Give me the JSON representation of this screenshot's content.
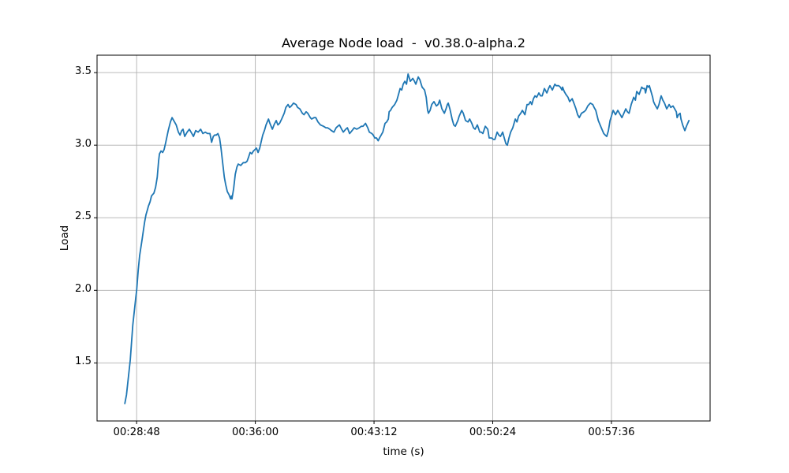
{
  "chart_data": {
    "type": "line",
    "title": "Average Node load  -  v0.38.0-alpha.2",
    "xlabel": "time (s)",
    "ylabel": "Load",
    "line_color": "#1f77b4",
    "grid": true,
    "grid_color": "#b0b0b0",
    "spine_color": "#000000",
    "background_color": "#ffffff",
    "legend": "none",
    "xlim_seconds": [
      1584,
      3815
    ],
    "ylim": [
      1.1,
      3.62
    ],
    "xticks": [
      {
        "label": "00:28:48",
        "seconds": 1728
      },
      {
        "label": "00:36:00",
        "seconds": 2160
      },
      {
        "label": "00:43:12",
        "seconds": 2592
      },
      {
        "label": "00:50:24",
        "seconds": 3024
      },
      {
        "label": "00:57:36",
        "seconds": 3456
      }
    ],
    "yticks": [
      {
        "label": "3.5",
        "value": 3.5
      },
      {
        "label": "3.0",
        "value": 3.0
      },
      {
        "label": "2.5",
        "value": 2.5
      },
      {
        "label": "2.0",
        "value": 2.0
      },
      {
        "label": "1.5",
        "value": 1.5
      }
    ],
    "series": [
      {
        "name": "average-node-load",
        "points": [
          [
            1685,
            1.22
          ],
          [
            1691,
            1.28
          ],
          [
            1705,
            1.52
          ],
          [
            1714,
            1.76
          ],
          [
            1725,
            1.95
          ],
          [
            1728,
            2.0
          ],
          [
            1734,
            2.14
          ],
          [
            1739,
            2.24
          ],
          [
            1748,
            2.35
          ],
          [
            1754,
            2.43
          ],
          [
            1757,
            2.47
          ],
          [
            1762,
            2.52
          ],
          [
            1768,
            2.56
          ],
          [
            1771,
            2.58
          ],
          [
            1777,
            2.61
          ],
          [
            1782,
            2.65
          ],
          [
            1791,
            2.67
          ],
          [
            1797,
            2.71
          ],
          [
            1803,
            2.78
          ],
          [
            1808,
            2.89
          ],
          [
            1811,
            2.94
          ],
          [
            1817,
            2.96
          ],
          [
            1823,
            2.95
          ],
          [
            1828,
            2.97
          ],
          [
            1834,
            3.02
          ],
          [
            1843,
            3.1
          ],
          [
            1851,
            3.16
          ],
          [
            1857,
            3.19
          ],
          [
            1863,
            3.17
          ],
          [
            1872,
            3.14
          ],
          [
            1880,
            3.09
          ],
          [
            1886,
            3.07
          ],
          [
            1892,
            3.1
          ],
          [
            1897,
            3.11
          ],
          [
            1903,
            3.06
          ],
          [
            1912,
            3.09
          ],
          [
            1920,
            3.11
          ],
          [
            1929,
            3.08
          ],
          [
            1935,
            3.06
          ],
          [
            1943,
            3.1
          ],
          [
            1952,
            3.09
          ],
          [
            1961,
            3.11
          ],
          [
            1969,
            3.08
          ],
          [
            1978,
            3.09
          ],
          [
            1986,
            3.08
          ],
          [
            1995,
            3.08
          ],
          [
            2001,
            3.02
          ],
          [
            2007,
            3.06
          ],
          [
            2012,
            3.07
          ],
          [
            2018,
            3.07
          ],
          [
            2024,
            3.08
          ],
          [
            2030,
            3.05
          ],
          [
            2035,
            2.98
          ],
          [
            2041,
            2.88
          ],
          [
            2047,
            2.78
          ],
          [
            2052,
            2.73
          ],
          [
            2058,
            2.68
          ],
          [
            2064,
            2.66
          ],
          [
            2070,
            2.63
          ],
          [
            2073,
            2.65
          ],
          [
            2075,
            2.63
          ],
          [
            2081,
            2.7
          ],
          [
            2087,
            2.8
          ],
          [
            2093,
            2.85
          ],
          [
            2098,
            2.87
          ],
          [
            2107,
            2.86
          ],
          [
            2116,
            2.88
          ],
          [
            2124,
            2.88
          ],
          [
            2130,
            2.89
          ],
          [
            2136,
            2.92
          ],
          [
            2141,
            2.95
          ],
          [
            2147,
            2.94
          ],
          [
            2153,
            2.96
          ],
          [
            2159,
            2.97
          ],
          [
            2164,
            2.98
          ],
          [
            2170,
            2.95
          ],
          [
            2176,
            2.98
          ],
          [
            2182,
            3.03
          ],
          [
            2187,
            3.07
          ],
          [
            2193,
            3.1
          ],
          [
            2199,
            3.14
          ],
          [
            2208,
            3.18
          ],
          [
            2213,
            3.15
          ],
          [
            2222,
            3.11
          ],
          [
            2228,
            3.14
          ],
          [
            2236,
            3.17
          ],
          [
            2242,
            3.14
          ],
          [
            2248,
            3.15
          ],
          [
            2256,
            3.18
          ],
          [
            2265,
            3.22
          ],
          [
            2271,
            3.26
          ],
          [
            2279,
            3.28
          ],
          [
            2285,
            3.26
          ],
          [
            2291,
            3.27
          ],
          [
            2299,
            3.29
          ],
          [
            2308,
            3.28
          ],
          [
            2314,
            3.26
          ],
          [
            2322,
            3.25
          ],
          [
            2331,
            3.22
          ],
          [
            2337,
            3.21
          ],
          [
            2345,
            3.23
          ],
          [
            2351,
            3.22
          ],
          [
            2360,
            3.19
          ],
          [
            2365,
            3.18
          ],
          [
            2374,
            3.19
          ],
          [
            2380,
            3.19
          ],
          [
            2388,
            3.16
          ],
          [
            2397,
            3.14
          ],
          [
            2408,
            3.13
          ],
          [
            2417,
            3.12
          ],
          [
            2423,
            3.12
          ],
          [
            2431,
            3.11
          ],
          [
            2437,
            3.1
          ],
          [
            2446,
            3.09
          ],
          [
            2454,
            3.12
          ],
          [
            2460,
            3.13
          ],
          [
            2466,
            3.14
          ],
          [
            2474,
            3.11
          ],
          [
            2480,
            3.09
          ],
          [
            2489,
            3.11
          ],
          [
            2495,
            3.12
          ],
          [
            2503,
            3.08
          ],
          [
            2512,
            3.1
          ],
          [
            2520,
            3.12
          ],
          [
            2529,
            3.11
          ],
          [
            2538,
            3.12
          ],
          [
            2546,
            3.13
          ],
          [
            2552,
            3.13
          ],
          [
            2561,
            3.15
          ],
          [
            2569,
            3.12
          ],
          [
            2575,
            3.09
          ],
          [
            2584,
            3.08
          ],
          [
            2589,
            3.07
          ],
          [
            2595,
            3.05
          ],
          [
            2601,
            3.05
          ],
          [
            2607,
            3.03
          ],
          [
            2612,
            3.05
          ],
          [
            2618,
            3.07
          ],
          [
            2624,
            3.09
          ],
          [
            2632,
            3.15
          ],
          [
            2638,
            3.16
          ],
          [
            2644,
            3.18
          ],
          [
            2647,
            3.23
          ],
          [
            2652,
            3.24
          ],
          [
            2658,
            3.26
          ],
          [
            2667,
            3.28
          ],
          [
            2675,
            3.31
          ],
          [
            2681,
            3.35
          ],
          [
            2687,
            3.39
          ],
          [
            2693,
            3.38
          ],
          [
            2698,
            3.42
          ],
          [
            2704,
            3.44
          ],
          [
            2710,
            3.42
          ],
          [
            2716,
            3.49
          ],
          [
            2721,
            3.46
          ],
          [
            2724,
            3.44
          ],
          [
            2733,
            3.46
          ],
          [
            2739,
            3.44
          ],
          [
            2744,
            3.42
          ],
          [
            2753,
            3.47
          ],
          [
            2759,
            3.45
          ],
          [
            2762,
            3.43
          ],
          [
            2767,
            3.4
          ],
          [
            2776,
            3.38
          ],
          [
            2782,
            3.33
          ],
          [
            2787,
            3.24
          ],
          [
            2790,
            3.22
          ],
          [
            2796,
            3.24
          ],
          [
            2802,
            3.28
          ],
          [
            2810,
            3.3
          ],
          [
            2819,
            3.27
          ],
          [
            2825,
            3.28
          ],
          [
            2831,
            3.31
          ],
          [
            2839,
            3.25
          ],
          [
            2848,
            3.22
          ],
          [
            2854,
            3.25
          ],
          [
            2859,
            3.28
          ],
          [
            2862,
            3.29
          ],
          [
            2868,
            3.25
          ],
          [
            2876,
            3.18
          ],
          [
            2882,
            3.14
          ],
          [
            2888,
            3.13
          ],
          [
            2897,
            3.17
          ],
          [
            2902,
            3.2
          ],
          [
            2911,
            3.24
          ],
          [
            2917,
            3.22
          ],
          [
            2925,
            3.17
          ],
          [
            2934,
            3.16
          ],
          [
            2940,
            3.18
          ],
          [
            2948,
            3.15
          ],
          [
            2954,
            3.12
          ],
          [
            2960,
            3.11
          ],
          [
            2968,
            3.14
          ],
          [
            2977,
            3.09
          ],
          [
            2983,
            3.09
          ],
          [
            2988,
            3.08
          ],
          [
            2997,
            3.13
          ],
          [
            3006,
            3.11
          ],
          [
            3011,
            3.05
          ],
          [
            3020,
            3.05
          ],
          [
            3026,
            3.04
          ],
          [
            3032,
            3.04
          ],
          [
            3040,
            3.09
          ],
          [
            3046,
            3.07
          ],
          [
            3052,
            3.06
          ],
          [
            3060,
            3.09
          ],
          [
            3066,
            3.05
          ],
          [
            3072,
            3.01
          ],
          [
            3077,
            3.0
          ],
          [
            3083,
            3.05
          ],
          [
            3089,
            3.09
          ],
          [
            3097,
            3.12
          ],
          [
            3106,
            3.18
          ],
          [
            3112,
            3.16
          ],
          [
            3118,
            3.2
          ],
          [
            3126,
            3.22
          ],
          [
            3132,
            3.24
          ],
          [
            3141,
            3.21
          ],
          [
            3149,
            3.28
          ],
          [
            3155,
            3.28
          ],
          [
            3161,
            3.3
          ],
          [
            3166,
            3.28
          ],
          [
            3172,
            3.32
          ],
          [
            3178,
            3.34
          ],
          [
            3184,
            3.33
          ],
          [
            3192,
            3.36
          ],
          [
            3198,
            3.34
          ],
          [
            3204,
            3.34
          ],
          [
            3212,
            3.39
          ],
          [
            3221,
            3.36
          ],
          [
            3227,
            3.39
          ],
          [
            3232,
            3.41
          ],
          [
            3241,
            3.38
          ],
          [
            3250,
            3.42
          ],
          [
            3255,
            3.41
          ],
          [
            3264,
            3.41
          ],
          [
            3270,
            3.4
          ],
          [
            3276,
            3.38
          ],
          [
            3278,
            3.4
          ],
          [
            3284,
            3.37
          ],
          [
            3290,
            3.35
          ],
          [
            3298,
            3.33
          ],
          [
            3304,
            3.3
          ],
          [
            3313,
            3.32
          ],
          [
            3321,
            3.28
          ],
          [
            3327,
            3.25
          ],
          [
            3333,
            3.21
          ],
          [
            3339,
            3.19
          ],
          [
            3347,
            3.22
          ],
          [
            3356,
            3.23
          ],
          [
            3362,
            3.24
          ],
          [
            3370,
            3.27
          ],
          [
            3379,
            3.29
          ],
          [
            3388,
            3.28
          ],
          [
            3393,
            3.26
          ],
          [
            3399,
            3.24
          ],
          [
            3408,
            3.17
          ],
          [
            3419,
            3.12
          ],
          [
            3428,
            3.08
          ],
          [
            3433,
            3.07
          ],
          [
            3439,
            3.06
          ],
          [
            3445,
            3.1
          ],
          [
            3451,
            3.17
          ],
          [
            3456,
            3.2
          ],
          [
            3462,
            3.24
          ],
          [
            3471,
            3.21
          ],
          [
            3479,
            3.24
          ],
          [
            3485,
            3.22
          ],
          [
            3491,
            3.2
          ],
          [
            3494,
            3.19
          ],
          [
            3499,
            3.21
          ],
          [
            3508,
            3.25
          ],
          [
            3514,
            3.23
          ],
          [
            3520,
            3.22
          ],
          [
            3528,
            3.28
          ],
          [
            3537,
            3.33
          ],
          [
            3543,
            3.31
          ],
          [
            3548,
            3.37
          ],
          [
            3557,
            3.35
          ],
          [
            3566,
            3.4
          ],
          [
            3571,
            3.39
          ],
          [
            3577,
            3.39
          ],
          [
            3580,
            3.36
          ],
          [
            3586,
            3.41
          ],
          [
            3591,
            3.4
          ],
          [
            3594,
            3.41
          ],
          [
            3600,
            3.37
          ],
          [
            3606,
            3.33
          ],
          [
            3609,
            3.3
          ],
          [
            3614,
            3.28
          ],
          [
            3620,
            3.26
          ],
          [
            3623,
            3.25
          ],
          [
            3629,
            3.28
          ],
          [
            3634,
            3.32
          ],
          [
            3637,
            3.34
          ],
          [
            3643,
            3.31
          ],
          [
            3649,
            3.29
          ],
          [
            3657,
            3.25
          ],
          [
            3663,
            3.27
          ],
          [
            3666,
            3.28
          ],
          [
            3672,
            3.26
          ],
          [
            3680,
            3.27
          ],
          [
            3686,
            3.25
          ],
          [
            3692,
            3.23
          ],
          [
            3695,
            3.19
          ],
          [
            3700,
            3.21
          ],
          [
            3706,
            3.22
          ],
          [
            3709,
            3.18
          ],
          [
            3715,
            3.14
          ],
          [
            3721,
            3.11
          ],
          [
            3723,
            3.1
          ],
          [
            3729,
            3.13
          ],
          [
            3738,
            3.17
          ]
        ]
      }
    ]
  }
}
